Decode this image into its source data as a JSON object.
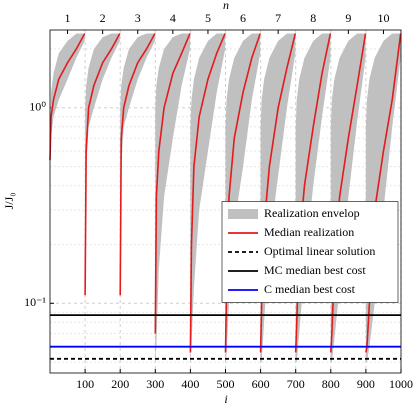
{
  "chart_data": {
    "type": "line",
    "x_label": "i",
    "x2_label": "n",
    "y_label": "J/J₀",
    "xlim": [
      0,
      1000
    ],
    "xticks": [
      100,
      200,
      300,
      400,
      500,
      600,
      700,
      800,
      900,
      1000
    ],
    "x2lim": [
      0.5,
      10.5
    ],
    "x2ticks": [
      1,
      2,
      3,
      4,
      5,
      6,
      7,
      8,
      9,
      10
    ],
    "ylim": [
      0.044,
      2.5
    ],
    "y_log": true,
    "yticks": [
      {
        "value": 0.1,
        "label": "10⁻¹"
      },
      {
        "value": 1,
        "label": "10⁰"
      }
    ],
    "grid": true,
    "minor_grid": true,
    "legend_loc": "center right",
    "series": [
      {
        "name": "Realization envelop",
        "kind": "band",
        "color": "#c0c0c0",
        "x": [
          0,
          3,
          10,
          25,
          50,
          75,
          99,
          null,
          100,
          103,
          110,
          125,
          150,
          175,
          199,
          null,
          200,
          203,
          210,
          225,
          250,
          275,
          299,
          null,
          300,
          303,
          310,
          325,
          350,
          375,
          399,
          null,
          400,
          403,
          410,
          425,
          450,
          475,
          499,
          null,
          500,
          503,
          510,
          525,
          550,
          575,
          599,
          null,
          600,
          603,
          610,
          625,
          650,
          675,
          699,
          null,
          700,
          703,
          710,
          725,
          750,
          775,
          799,
          null,
          800,
          803,
          810,
          825,
          850,
          875,
          899,
          null,
          900,
          903,
          910,
          925,
          950,
          975,
          999
        ],
        "lower": [
          0.54,
          0.7,
          0.9,
          1.1,
          1.4,
          1.8,
          2.2,
          null,
          0.11,
          0.5,
          0.8,
          1.0,
          1.4,
          1.8,
          2.2,
          null,
          0.11,
          0.5,
          0.8,
          1.0,
          1.4,
          1.8,
          2.2,
          null,
          0.05,
          0.06,
          0.15,
          0.35,
          0.7,
          1.3,
          2.0,
          null,
          0.05,
          0.06,
          0.12,
          0.3,
          0.6,
          1.2,
          2.0,
          null,
          0.05,
          0.055,
          0.1,
          0.25,
          0.5,
          1.1,
          1.9,
          null,
          0.05,
          0.05,
          0.08,
          0.2,
          0.45,
          1.0,
          1.9,
          null,
          0.05,
          0.05,
          0.07,
          0.15,
          0.4,
          0.9,
          1.8,
          null,
          0.05,
          0.05,
          0.065,
          0.12,
          0.35,
          0.85,
          1.8,
          null,
          0.05,
          0.05,
          0.06,
          0.1,
          0.3,
          0.8,
          1.8
        ],
        "upper": [
          0.6,
          1.2,
          1.5,
          1.9,
          2.2,
          2.4,
          2.4,
          null,
          1.0,
          1.3,
          1.6,
          2.0,
          2.3,
          2.4,
          2.4,
          null,
          1.0,
          1.3,
          1.6,
          2.0,
          2.3,
          2.4,
          2.4,
          null,
          1.0,
          1.3,
          1.6,
          2.0,
          2.3,
          2.4,
          2.4,
          null,
          0.8,
          1.1,
          1.4,
          1.8,
          2.2,
          2.4,
          2.4,
          null,
          0.8,
          1.1,
          1.4,
          1.8,
          2.2,
          2.4,
          2.4,
          null,
          0.8,
          1.1,
          1.4,
          1.8,
          2.2,
          2.4,
          2.4,
          null,
          0.8,
          1.1,
          1.4,
          1.8,
          2.2,
          2.4,
          2.4,
          null,
          0.8,
          1.1,
          1.4,
          1.8,
          2.2,
          2.4,
          2.4,
          null,
          0.8,
          1.1,
          1.4,
          1.8,
          2.2,
          2.4,
          2.4
        ]
      },
      {
        "name": "Median realization",
        "kind": "line",
        "color": "#e41a1c",
        "x": [
          0,
          3,
          10,
          25,
          50,
          75,
          99,
          null,
          100,
          103,
          110,
          125,
          150,
          175,
          199,
          null,
          200,
          203,
          210,
          225,
          250,
          275,
          299,
          null,
          300,
          303,
          310,
          325,
          350,
          375,
          399,
          null,
          400,
          403,
          410,
          425,
          450,
          475,
          499,
          null,
          500,
          503,
          510,
          525,
          550,
          575,
          599,
          null,
          600,
          603,
          610,
          625,
          650,
          675,
          699,
          null,
          700,
          703,
          710,
          725,
          750,
          775,
          799,
          null,
          800,
          803,
          810,
          825,
          850,
          875,
          899,
          null,
          900,
          903,
          910,
          925,
          950,
          975,
          999
        ],
        "values": [
          0.54,
          0.9,
          1.1,
          1.4,
          1.7,
          2.0,
          2.4,
          null,
          0.11,
          0.6,
          1.0,
          1.3,
          1.7,
          2.0,
          2.4,
          null,
          0.11,
          0.7,
          1.0,
          1.3,
          1.7,
          2.0,
          2.4,
          null,
          0.07,
          0.35,
          0.6,
          1.0,
          1.5,
          1.9,
          2.4,
          null,
          0.056,
          0.2,
          0.5,
          0.9,
          1.4,
          1.9,
          2.4,
          null,
          0.056,
          0.12,
          0.35,
          0.7,
          1.2,
          1.8,
          2.4,
          null,
          0.056,
          0.1,
          0.25,
          0.5,
          1.0,
          1.6,
          2.4,
          null,
          0.056,
          0.08,
          0.2,
          0.4,
          0.8,
          1.5,
          2.4,
          null,
          0.056,
          0.07,
          0.15,
          0.35,
          0.7,
          1.3,
          2.4,
          null,
          0.056,
          0.06,
          0.1,
          0.3,
          0.6,
          1.1,
          2.4
        ]
      },
      {
        "name": "Optimal linear solution",
        "kind": "hline",
        "color": "#000000",
        "dashed": true,
        "value": 0.052
      },
      {
        "name": "MC median best cost",
        "kind": "hline",
        "color": "#000000",
        "dashed": false,
        "value": 0.087
      },
      {
        "name": "C median best cost",
        "kind": "hline",
        "color": "#0000ff",
        "dashed": false,
        "value": 0.06
      }
    ]
  }
}
